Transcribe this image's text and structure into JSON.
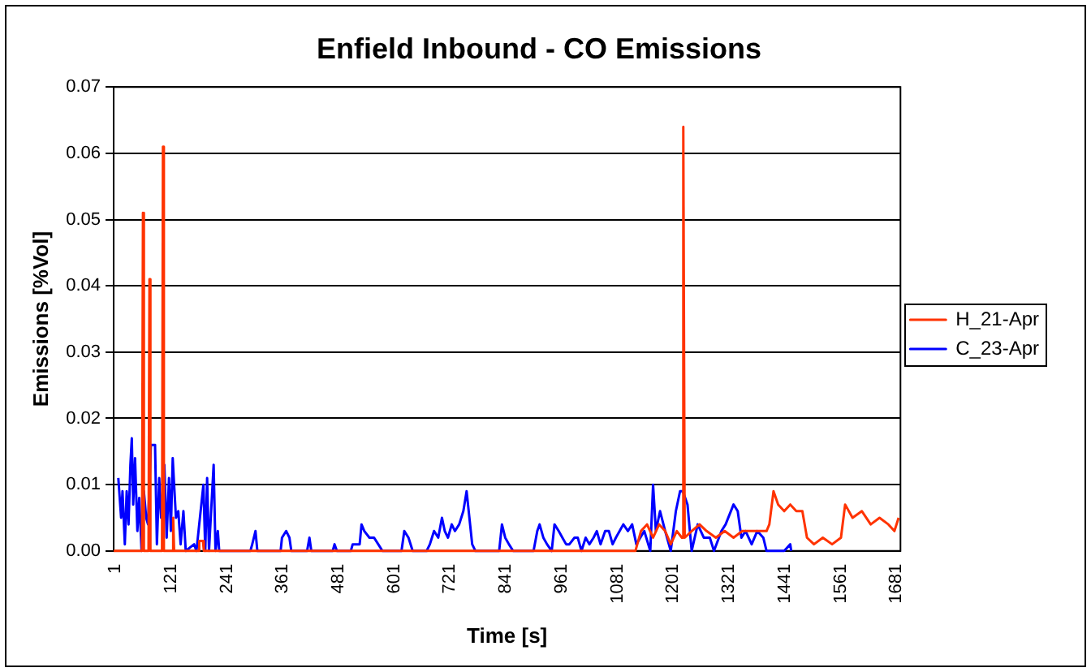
{
  "chart_data": {
    "type": "line",
    "title": "Enfield Inbound - CO Emissions",
    "xlabel": "Time [s]",
    "ylabel": "Emissions [%Vol]",
    "xlim": [
      1,
      1693
    ],
    "xticks": [
      1,
      121,
      241,
      361,
      481,
      601,
      721,
      841,
      961,
      1081,
      1201,
      1321,
      1441,
      1561,
      1681
    ],
    "ylim": [
      0,
      0.07
    ],
    "yticks": [
      {
        "value": 0,
        "label": "0.00"
      },
      {
        "value": 0.01,
        "label": "0.01"
      },
      {
        "value": 0.02,
        "label": "0.02"
      },
      {
        "value": 0.03,
        "label": "0.03"
      },
      {
        "value": 0.04,
        "label": "0.04"
      },
      {
        "value": 0.05,
        "label": "0.05"
      },
      {
        "value": 0.06,
        "label": "0.06"
      },
      {
        "value": 0.07,
        "label": "0.07"
      }
    ],
    "grid": "y",
    "legend": "right",
    "marker": "none",
    "series": [
      {
        "name": "H_21-Apr",
        "color": "#ff3300",
        "x": [
          1,
          62,
          64,
          66,
          76,
          78,
          80,
          105,
          107,
          109,
          127,
          129,
          131,
          183,
          185,
          193,
          195,
          1123,
          1135,
          1148,
          1161,
          1174,
          1187,
          1199,
          1212,
          1223,
          1226,
          1229,
          1244,
          1261,
          1276,
          1296,
          1315,
          1334,
          1353,
          1379,
          1405,
          1411,
          1420,
          1430,
          1443,
          1456,
          1469,
          1482,
          1492,
          1507,
          1526,
          1546,
          1565,
          1574,
          1590,
          1610,
          1629,
          1648,
          1667,
          1680,
          1689
        ],
        "values": [
          0,
          0,
          0.051,
          0,
          0,
          0.041,
          0,
          0,
          0.061,
          0,
          0,
          0.005,
          0,
          0,
          0.0015,
          0.0015,
          0,
          0,
          0.003,
          0.004,
          0.002,
          0.004,
          0.003,
          0.001,
          0.003,
          0.002,
          0.064,
          0.002,
          0.003,
          0.004,
          0.003,
          0.002,
          0.003,
          0.002,
          0.003,
          0.003,
          0.003,
          0.004,
          0.009,
          0.007,
          0.006,
          0.007,
          0.006,
          0.006,
          0.002,
          0.001,
          0.002,
          0.001,
          0.002,
          0.007,
          0.005,
          0.006,
          0.004,
          0.005,
          0.004,
          0.003,
          0.005
        ]
      },
      {
        "name": "C_23-Apr",
        "color": "#0000ff",
        "x": [
          11,
          17,
          20,
          25,
          29,
          33,
          37,
          40,
          43,
          47,
          52,
          56,
          61,
          66,
          71,
          75,
          81,
          90,
          94,
          99,
          103,
          110,
          115,
          120,
          124,
          128,
          131,
          135,
          140,
          145,
          151,
          156,
          174,
          179,
          194,
          198,
          202,
          206,
          216,
          220,
          225,
          228,
          295,
          299,
          306,
          310,
          360,
          363,
          372,
          379,
          383,
          417,
          422,
          426,
          472,
          476,
          481,
          511,
          515,
          530,
          534,
          540,
          551,
          561,
          570,
          579,
          620,
          626,
          635,
          644,
          674,
          681,
          690,
          699,
          707,
          713,
          720,
          728,
          735,
          744,
          753,
          760,
          766,
          772,
          779,
          830,
          836,
          843,
          851,
          860,
          904,
          912,
          917,
          925,
          933,
          943,
          949,
          958,
          966,
          974,
          981,
          992,
          999,
          1007,
          1016,
          1024,
          1033,
          1040,
          1048,
          1058,
          1066,
          1074,
          1081,
          1097,
          1107,
          1116,
          1125,
          1142,
          1155,
          1161,
          1167,
          1176,
          1187,
          1199,
          1210,
          1219,
          1225,
          1235,
          1244,
          1257,
          1270,
          1283,
          1292,
          1308,
          1317,
          1334,
          1343,
          1351,
          1360,
          1373,
          1385,
          1398,
          1405,
          1443,
          1456,
          1458
        ],
        "values": [
          0.011,
          0.005,
          0.009,
          0.001,
          0.009,
          0.004,
          0.013,
          0.017,
          0.007,
          0.014,
          0.003,
          0.008,
          0,
          0.009,
          0.005,
          0.004,
          0.016,
          0.016,
          0.001,
          0.011,
          0.005,
          0.013,
          0.002,
          0.011,
          0.003,
          0.014,
          0.01,
          0.005,
          0.006,
          0.001,
          0.006,
          0,
          0.001,
          0,
          0.01,
          0,
          0.011,
          0,
          0.013,
          0,
          0.003,
          0,
          0,
          0.001,
          0.003,
          0,
          0,
          0.002,
          0.003,
          0.002,
          0,
          0,
          0.002,
          0,
          0,
          0.001,
          0,
          0,
          0.001,
          0.001,
          0.004,
          0.003,
          0.002,
          0.002,
          0.001,
          0,
          0,
          0.003,
          0.002,
          0,
          0,
          0.001,
          0.003,
          0.002,
          0.005,
          0.003,
          0.002,
          0.004,
          0.003,
          0.004,
          0.006,
          0.009,
          0.005,
          0.001,
          0,
          0,
          0.004,
          0.002,
          0.001,
          0,
          0,
          0.003,
          0.004,
          0.002,
          0.001,
          0,
          0.004,
          0.003,
          0.002,
          0.001,
          0.001,
          0.002,
          0.002,
          0,
          0.002,
          0.001,
          0.002,
          0.003,
          0.001,
          0.003,
          0.003,
          0.001,
          0.002,
          0.004,
          0.003,
          0.004,
          0.001,
          0.003,
          0,
          0.01,
          0.003,
          0.006,
          0.003,
          0,
          0.006,
          0.009,
          0.009,
          0.007,
          0,
          0.004,
          0.002,
          0.002,
          0,
          0.003,
          0.004,
          0.007,
          0.006,
          0.002,
          0.003,
          0.001,
          0.003,
          0.002,
          0,
          0,
          0.001,
          0
        ]
      }
    ]
  }
}
